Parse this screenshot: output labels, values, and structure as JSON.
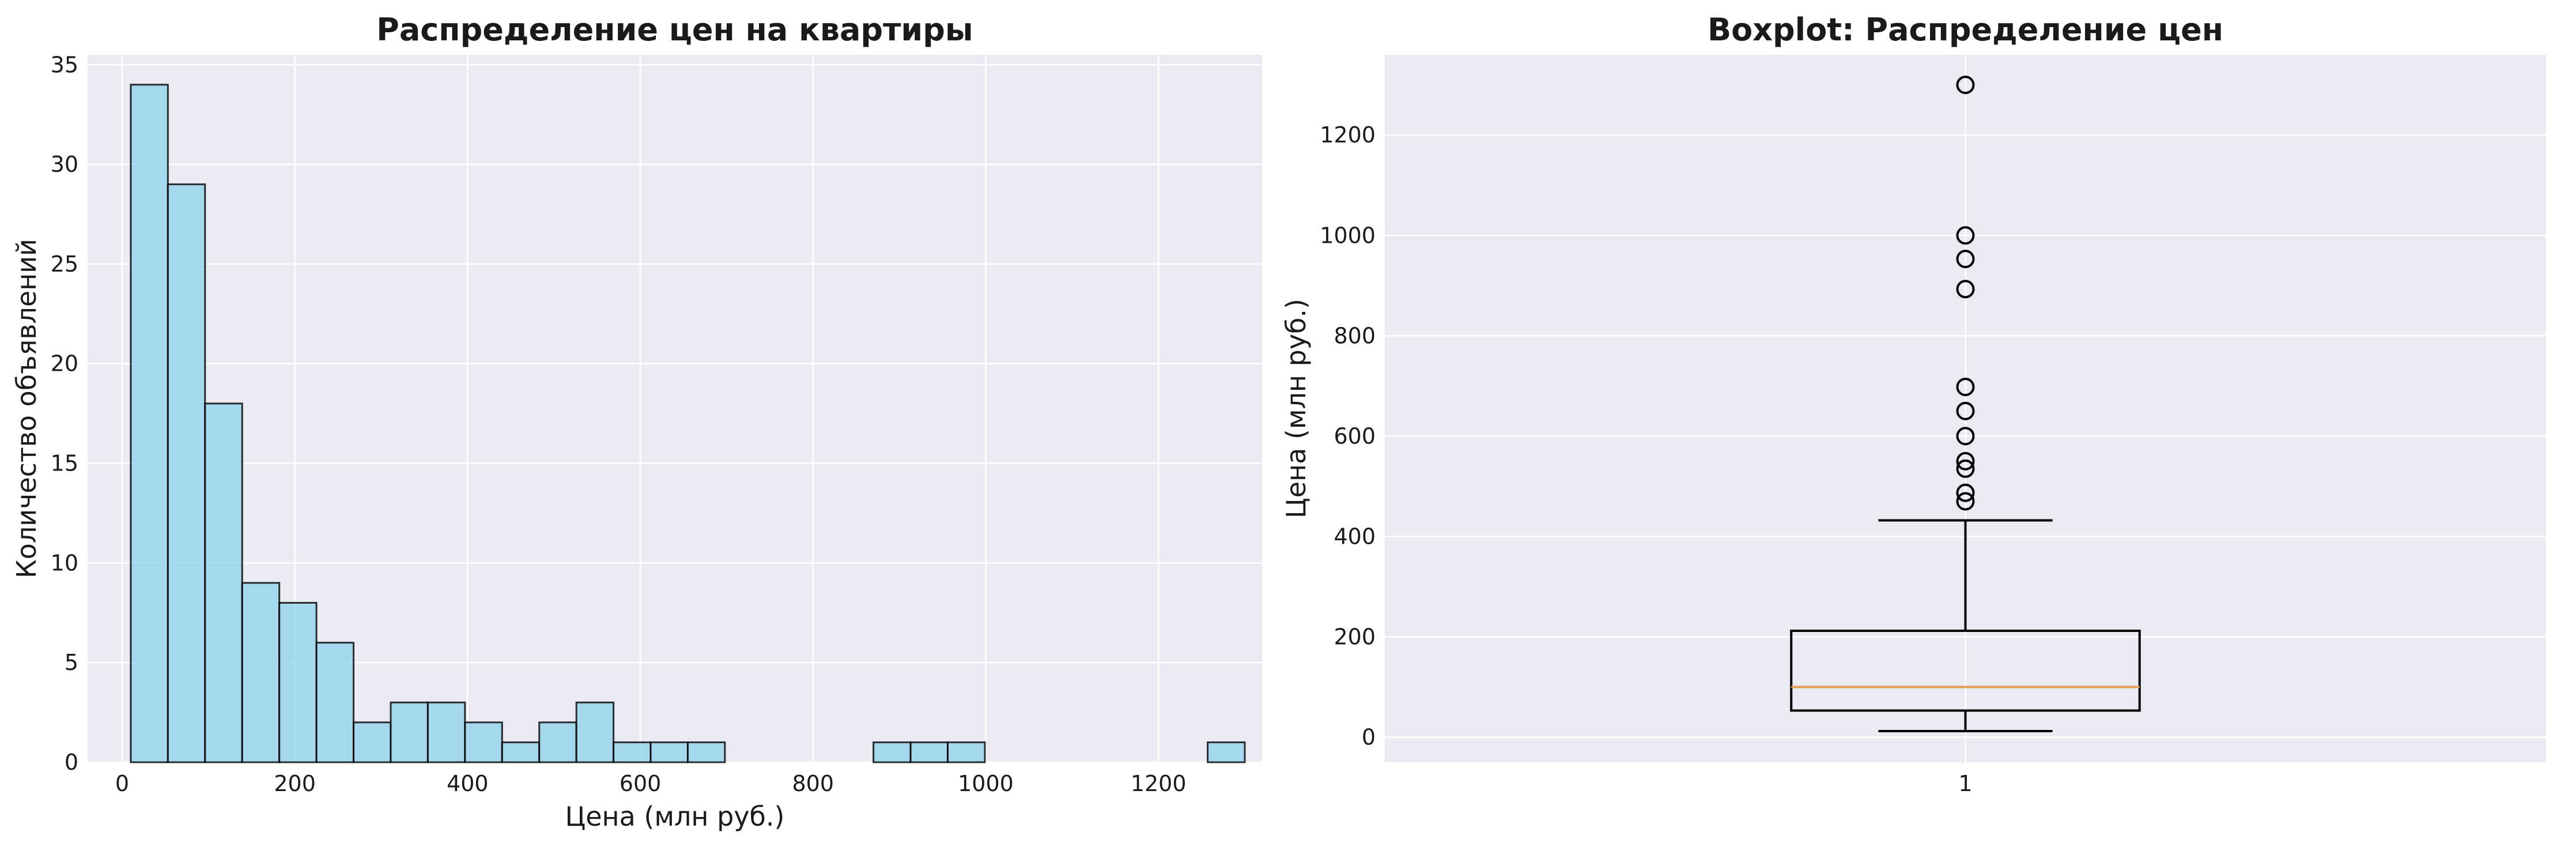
{
  "chart_data": [
    {
      "type": "bar",
      "title": "Распределение цен на квартиры",
      "xlabel": "Цена (млн руб.)",
      "ylabel": "Количество объявлений",
      "xlim": [
        -40,
        1320
      ],
      "ylim": [
        0,
        35.5
      ],
      "xticks": [
        0,
        200,
        400,
        600,
        800,
        1000,
        1200
      ],
      "yticks": [
        0,
        5,
        10,
        15,
        20,
        25,
        30,
        35
      ],
      "grid": true,
      "bin_width": 43,
      "bins": [
        {
          "x0": 10,
          "count": 34
        },
        {
          "x0": 53,
          "count": 29
        },
        {
          "x0": 96,
          "count": 18
        },
        {
          "x0": 139,
          "count": 9
        },
        {
          "x0": 182,
          "count": 8
        },
        {
          "x0": 225,
          "count": 6
        },
        {
          "x0": 268,
          "count": 2
        },
        {
          "x0": 311,
          "count": 3
        },
        {
          "x0": 354,
          "count": 3
        },
        {
          "x0": 397,
          "count": 2
        },
        {
          "x0": 440,
          "count": 1
        },
        {
          "x0": 483,
          "count": 2
        },
        {
          "x0": 526,
          "count": 3
        },
        {
          "x0": 569,
          "count": 1
        },
        {
          "x0": 612,
          "count": 1
        },
        {
          "x0": 655,
          "count": 1
        },
        {
          "x0": 870,
          "count": 1
        },
        {
          "x0": 913,
          "count": 1
        },
        {
          "x0": 956,
          "count": 1
        },
        {
          "x0": 1257,
          "count": 1
        }
      ]
    },
    {
      "type": "box",
      "title": "Boxplot: Распределение цен",
      "xlabel": "",
      "ylabel": "Цена (млн руб.)",
      "xlim": [
        0.5,
        1.5
      ],
      "ylim": [
        -50,
        1360
      ],
      "xticks": [
        1
      ],
      "yticks": [
        0,
        200,
        400,
        600,
        800,
        1000,
        1200
      ],
      "grid": true,
      "box": {
        "position": 1,
        "whisker_low": 12,
        "q1": 53,
        "median": 100,
        "q3": 212,
        "whisker_high": 432,
        "fliers": [
          470,
          487,
          535,
          550,
          600,
          650,
          698,
          893,
          953,
          1000,
          1300
        ]
      }
    }
  ]
}
